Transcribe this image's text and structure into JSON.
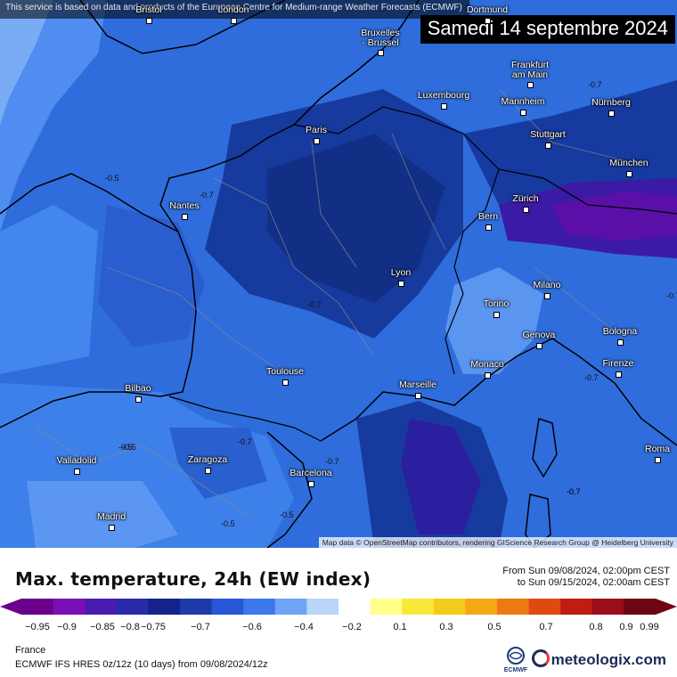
{
  "map": {
    "notice": "This service is based on data and products of the European Centre for Medium-range Weather Forecasts (ECMWF)",
    "date": "Samedi 14 septembre 2024",
    "attribution": "Map data © OpenStreetMap contributors, rendering GIScience Research Group @ Heidelberg University",
    "cities": [
      {
        "name": "Bristol"
      },
      {
        "name": "London"
      },
      {
        "name": "Bruxelles - Brussel"
      },
      {
        "name": "Dortmund"
      },
      {
        "name": "Frankfurt am Main"
      },
      {
        "name": "Luxembourg"
      },
      {
        "name": "Mannheim"
      },
      {
        "name": "Nürnberg"
      },
      {
        "name": "Paris"
      },
      {
        "name": "Stuttgart"
      },
      {
        "name": "München"
      },
      {
        "name": "Nantes"
      },
      {
        "name": "Zürich"
      },
      {
        "name": "Bern"
      },
      {
        "name": "Lyon"
      },
      {
        "name": "Milano"
      },
      {
        "name": "Torino"
      },
      {
        "name": "Genova"
      },
      {
        "name": "Bologna"
      },
      {
        "name": "Toulouse"
      },
      {
        "name": "Monaco"
      },
      {
        "name": "Marseille"
      },
      {
        "name": "Firenze"
      },
      {
        "name": "Bilbao"
      },
      {
        "name": "Valladolid"
      },
      {
        "name": "Zaragoza"
      },
      {
        "name": "Barcelona"
      },
      {
        "name": "Roma"
      },
      {
        "name": "Madrid"
      }
    ],
    "contour_labels": [
      "-0.5",
      "-0.7",
      "-0.7",
      "-0.7",
      "-0.7",
      "-0.7",
      "-0.7",
      "-0.7",
      "-0.5",
      "-0.7",
      "-0.5",
      "-0.5",
      "-0.5",
      "-0.7"
    ]
  },
  "legend": {
    "title": "Max. temperature, 24h (EW index)",
    "range_from": "From Sun 09/08/2024, 02:00pm CEST",
    "range_to": "to Sun 09/15/2024, 02:00am CEST",
    "ticks": [
      "−0.95",
      "−0.9",
      "−0.85",
      "−0.8",
      "−0.75",
      "−0.7",
      "−0.6",
      "−0.4",
      "−0.2",
      "0.1",
      "0.3",
      "0.5",
      "0.7",
      "0.8",
      "0.9",
      "0.99"
    ],
    "colors": [
      "#6a008c",
      "#7a10b4",
      "#4a1bb0",
      "#2a2aa8",
      "#14228a",
      "#1d3ba8",
      "#2756d6",
      "#3b78ec",
      "#6fa3f5",
      "#b9d5fb",
      "#ffffff",
      "#ffff8a",
      "#f7e83a",
      "#f3cb1a",
      "#f3a814",
      "#ec7a12",
      "#e04a12",
      "#c01c12",
      "#990e18",
      "#6e0612"
    ],
    "region": "France",
    "model": "ECMWF IFS HRES 0z/12z (10 days) from  09/08/2024/12z",
    "ecmwf_label": "ECMWF",
    "brand": "meteologix.com"
  }
}
